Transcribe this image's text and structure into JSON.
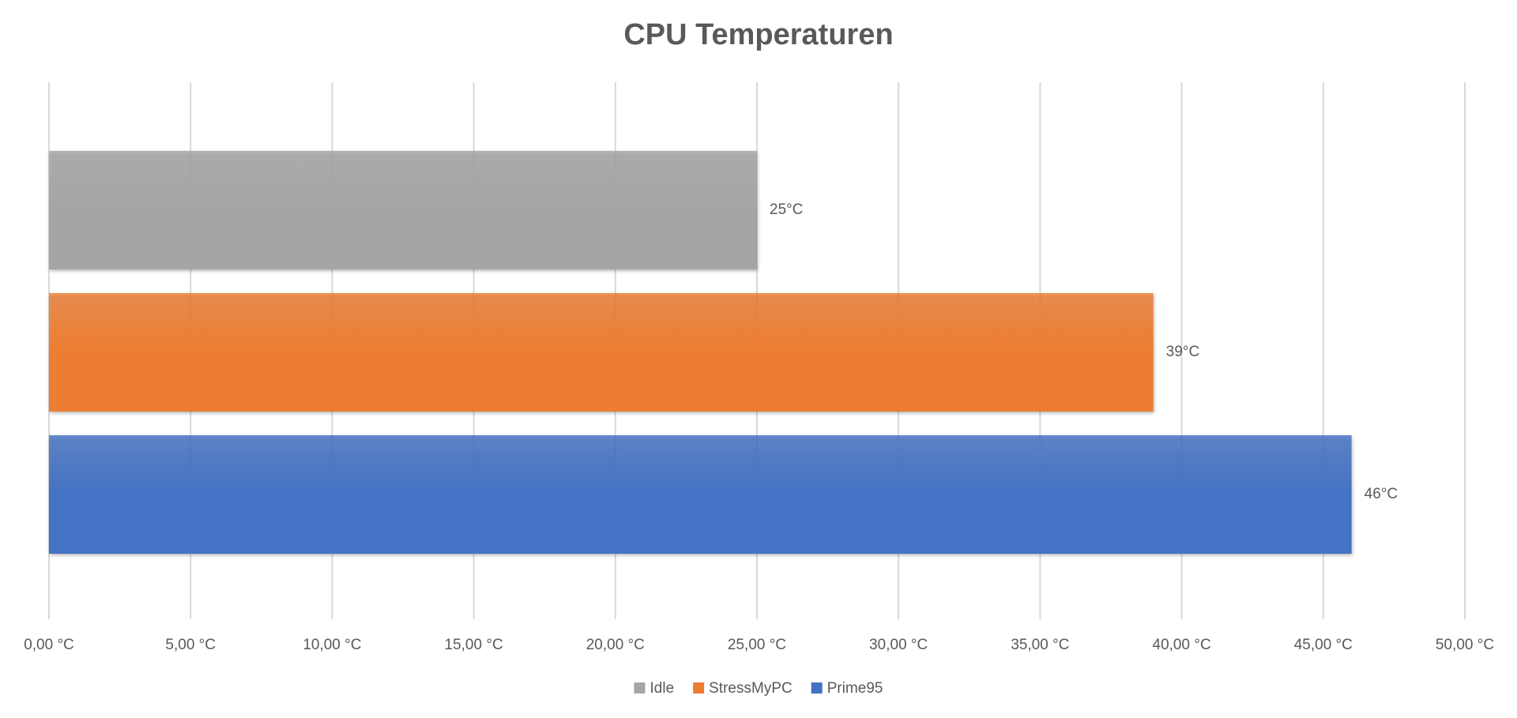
{
  "chart_data": {
    "type": "barh",
    "title": "CPU Temperaturen",
    "categories": [
      null
    ],
    "series": [
      {
        "name": "Idle",
        "color": "#a5a5a5",
        "values": [
          25
        ],
        "value_labels": [
          "25°C"
        ]
      },
      {
        "name": "StressMyPC",
        "color": "#ed7d31",
        "values": [
          39
        ],
        "value_labels": [
          "39°C"
        ]
      },
      {
        "name": "Prime95",
        "color": "#4472c4",
        "values": [
          46
        ],
        "value_labels": [
          "46°C"
        ]
      }
    ],
    "xlim": [
      0,
      50
    ],
    "xticks": [
      {
        "value": 0,
        "label": "0,00 °C"
      },
      {
        "value": 5,
        "label": "5,00 °C"
      },
      {
        "value": 10,
        "label": "10,00 °C"
      },
      {
        "value": 15,
        "label": "15,00 °C"
      },
      {
        "value": 20,
        "label": "20,00 °C"
      },
      {
        "value": 25,
        "label": "25,00 °C"
      },
      {
        "value": 30,
        "label": "30,00 °C"
      },
      {
        "value": 35,
        "label": "35,00 °C"
      },
      {
        "value": 40,
        "label": "40,00 °C"
      },
      {
        "value": 45,
        "label": "45,00 °C"
      },
      {
        "value": 50,
        "label": "50,00 °C"
      }
    ],
    "grid": true,
    "legend": "bottom"
  }
}
